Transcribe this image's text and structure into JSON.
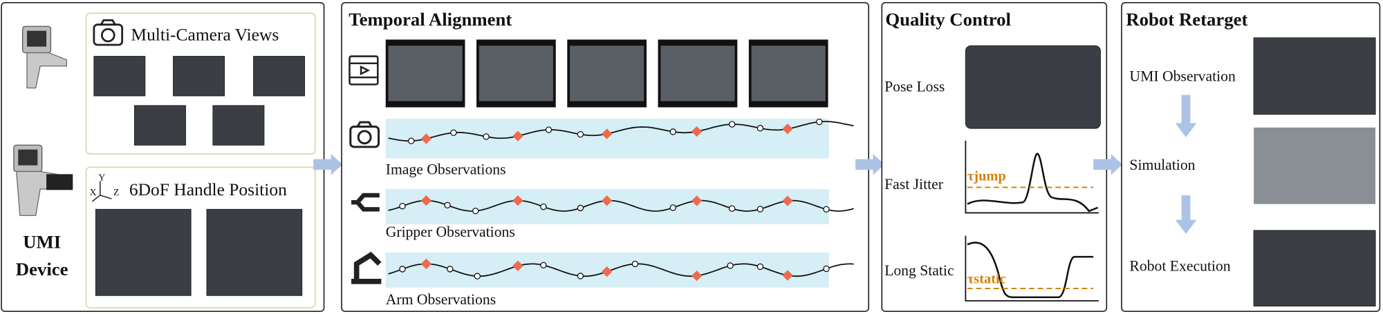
{
  "device": {
    "line1": "UMI",
    "line2": "Device"
  },
  "multi_camera": {
    "title": "Multi-Camera Views"
  },
  "handle": {
    "title": "6DoF Handle Position",
    "axes": [
      "X",
      "Y",
      "Z"
    ]
  },
  "temporal": {
    "title": "Temporal Alignment",
    "rows": [
      "Image Observations",
      "Gripper Observations",
      "Arm Observations"
    ]
  },
  "quality": {
    "title": "Quality Control",
    "items": [
      "Pose Loss",
      "Fast Jitter",
      "Long Static"
    ],
    "thresholds": [
      "τjump",
      "τstatic"
    ]
  },
  "retarget": {
    "title": "Robot Retarget",
    "steps": [
      "UMI Observation",
      "Simulation",
      "Robot Execution"
    ]
  }
}
